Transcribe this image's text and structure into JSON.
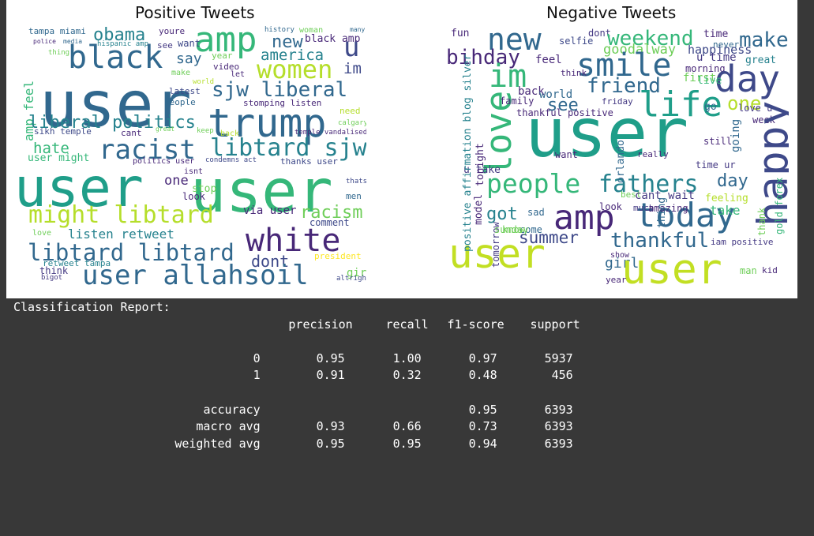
{
  "wordclouds": {
    "positive": {
      "title": "Positive Tweets",
      "words": [
        {
          "text": "tampa miami",
          "color": "#31688e"
        },
        {
          "text": "obama",
          "color": "#26828e"
        },
        {
          "text": "youre",
          "color": "#482878"
        },
        {
          "text": "amp",
          "color": "#35b779"
        },
        {
          "text": "history",
          "color": "#31688e"
        },
        {
          "text": "woman",
          "color": "#6ece58"
        },
        {
          "text": "many",
          "color": "#31688e"
        },
        {
          "text": "police",
          "color": "#482878"
        },
        {
          "text": "media",
          "color": "#31688e"
        },
        {
          "text": "hispanic amp",
          "color": "#26828e"
        },
        {
          "text": "see",
          "color": "#443983"
        },
        {
          "text": "want",
          "color": "#3e4989"
        },
        {
          "text": "new",
          "color": "#31688e"
        },
        {
          "text": "black amp",
          "color": "#482878"
        },
        {
          "text": "thing",
          "color": "#6ece58"
        },
        {
          "text": "black",
          "color": "#31688e"
        },
        {
          "text": "say",
          "color": "#31688e"
        },
        {
          "text": "year",
          "color": "#6ece58"
        },
        {
          "text": "america",
          "color": "#26828e"
        },
        {
          "text": "u",
          "color": "#3e4989"
        },
        {
          "text": "amp feel",
          "color": "#35b779"
        },
        {
          "text": "user",
          "color": "#31688e"
        },
        {
          "text": "video",
          "color": "#482878"
        },
        {
          "text": "women",
          "color": "#b5de2b"
        },
        {
          "text": "im",
          "color": "#3e4989"
        },
        {
          "text": "let",
          "color": "#482878"
        },
        {
          "text": "make",
          "color": "#6ece58"
        },
        {
          "text": "world",
          "color": "#b5de2b"
        },
        {
          "text": "sjw liberal",
          "color": "#31688e"
        },
        {
          "text": "latest",
          "color": "#3e4989"
        },
        {
          "text": "people",
          "color": "#31688e"
        },
        {
          "text": "stomping listen",
          "color": "#482878"
        },
        {
          "text": "trump",
          "color": "#31688e"
        },
        {
          "text": "liberal politics",
          "color": "#26828e"
        },
        {
          "text": "need",
          "color": "#b5de2b"
        },
        {
          "text": "sikh temple",
          "color": "#3e4989"
        },
        {
          "text": "cant",
          "color": "#482878"
        },
        {
          "text": "great",
          "color": "#6ece58"
        },
        {
          "text": "keep",
          "color": "#6ece58"
        },
        {
          "text": "back",
          "color": "#b5de2b"
        },
        {
          "text": "temple vandalised",
          "color": "#482878"
        },
        {
          "text": "calgary wso",
          "color": "#6ece58"
        },
        {
          "text": "hate",
          "color": "#35b779"
        },
        {
          "text": "racist",
          "color": "#31688e"
        },
        {
          "text": "libtard sjw",
          "color": "#26828e"
        },
        {
          "text": "user might",
          "color": "#35b779"
        },
        {
          "text": "politics user",
          "color": "#482878"
        },
        {
          "text": "condemns act",
          "color": "#3e4989"
        },
        {
          "text": "thanks user",
          "color": "#3e4989"
        },
        {
          "text": "user",
          "color": "#1f9e89"
        },
        {
          "text": "user",
          "color": "#35b779"
        },
        {
          "text": "one",
          "color": "#482878"
        },
        {
          "text": "isnt",
          "color": "#482878"
        },
        {
          "text": "stop",
          "color": "#6ece58"
        },
        {
          "text": "look",
          "color": "#482878"
        },
        {
          "text": "thats",
          "color": "#3e4989"
        },
        {
          "text": "men",
          "color": "#31688e"
        },
        {
          "text": "might libtard",
          "color": "#b5de2b"
        },
        {
          "text": "via user",
          "color": "#482878"
        },
        {
          "text": "racism",
          "color": "#6ece58"
        },
        {
          "text": "comment",
          "color": "#3e4989"
        },
        {
          "text": "listen retweet",
          "color": "#26828e"
        },
        {
          "text": "white",
          "color": "#482878"
        },
        {
          "text": "libtard libtard",
          "color": "#31688e"
        },
        {
          "text": "dont",
          "color": "#3e4989"
        },
        {
          "text": "president",
          "color": "#fde725"
        },
        {
          "text": "retweet tampa",
          "color": "#26828e"
        },
        {
          "text": "think",
          "color": "#443983"
        },
        {
          "text": "user allahsoil",
          "color": "#31688e"
        },
        {
          "text": "girl",
          "color": "#6ece58"
        },
        {
          "text": "bigot",
          "color": "#443983"
        },
        {
          "text": "altright",
          "color": "#3e4989"
        },
        {
          "text": "love",
          "color": "#6ece58"
        }
      ]
    },
    "negative": {
      "title": "Negative Tweets",
      "words": [
        {
          "text": "fun",
          "color": "#482878"
        },
        {
          "text": "new",
          "color": "#31688e"
        },
        {
          "text": "dont",
          "color": "#443983"
        },
        {
          "text": "weekend",
          "color": "#35b779"
        },
        {
          "text": "time",
          "color": "#482878"
        },
        {
          "text": "make",
          "color": "#31688e"
        },
        {
          "text": "selfie",
          "color": "#3e4989"
        },
        {
          "text": "happiness",
          "color": "#3e4989"
        },
        {
          "text": "never",
          "color": "#31688e"
        },
        {
          "text": "bihday",
          "color": "#482878"
        },
        {
          "text": "goodalway",
          "color": "#6ece58"
        },
        {
          "text": "u time",
          "color": "#443983"
        },
        {
          "text": "great",
          "color": "#26828e"
        },
        {
          "text": "feel",
          "color": "#482878"
        },
        {
          "text": "smile",
          "color": "#31688e"
        },
        {
          "text": "im",
          "color": "#35b779"
        },
        {
          "text": "morning",
          "color": "#482878"
        },
        {
          "text": "day",
          "color": "#3e4989"
        },
        {
          "text": "think",
          "color": "#482878"
        },
        {
          "text": "friend",
          "color": "#31688e"
        },
        {
          "text": "first",
          "color": "#6ece58"
        },
        {
          "text": "live",
          "color": "#35b779"
        },
        {
          "text": "love",
          "color": "#35b779"
        },
        {
          "text": "back",
          "color": "#482878"
        },
        {
          "text": "world",
          "color": "#31688e"
        },
        {
          "text": "life",
          "color": "#1f9e89"
        },
        {
          "text": "family",
          "color": "#482878"
        },
        {
          "text": "see",
          "color": "#31688e"
        },
        {
          "text": "friday",
          "color": "#443983"
        },
        {
          "text": "go",
          "color": "#31688e"
        },
        {
          "text": "one",
          "color": "#b5de2b"
        },
        {
          "text": "love u",
          "color": "#443983"
        },
        {
          "text": "thankful positive",
          "color": "#482878"
        },
        {
          "text": "week",
          "color": "#482878"
        },
        {
          "text": "user",
          "color": "#1f9e89"
        },
        {
          "text": "still",
          "color": "#482878"
        },
        {
          "text": "going",
          "color": "#31688e"
        },
        {
          "text": "happy",
          "color": "#3e4989"
        },
        {
          "text": "want",
          "color": "#482878"
        },
        {
          "text": "really",
          "color": "#482878"
        },
        {
          "text": "u take",
          "color": "#443983"
        },
        {
          "text": "time ur",
          "color": "#443983"
        },
        {
          "text": "people",
          "color": "#35b779"
        },
        {
          "text": "fathers",
          "color": "#26828e"
        },
        {
          "text": "day",
          "color": "#31688e"
        },
        {
          "text": "best",
          "color": "#6ece58"
        },
        {
          "text": "cant wait",
          "color": "#443983"
        },
        {
          "text": "feeling",
          "color": "#b5de2b"
        },
        {
          "text": "amp",
          "color": "#482878"
        },
        {
          "text": "today",
          "color": "#31688e"
        },
        {
          "text": "take",
          "color": "#35b779"
        },
        {
          "text": "got",
          "color": "#26828e"
        },
        {
          "text": "sad",
          "color": "#31688e"
        },
        {
          "text": "look",
          "color": "#482878"
        },
        {
          "text": "much",
          "color": "#443983"
        },
        {
          "text": "amazing",
          "color": "#482878"
        },
        {
          "text": "thank",
          "color": "#6ece58"
        },
        {
          "text": "know",
          "color": "#6ece58"
        },
        {
          "text": "come",
          "color": "#31688e"
        },
        {
          "text": "summer",
          "color": "#3e4989"
        },
        {
          "text": "thankful",
          "color": "#31688e"
        },
        {
          "text": "iam positive",
          "color": "#443983"
        },
        {
          "text": "user",
          "color": "#c2df23"
        },
        {
          "text": "girl",
          "color": "#31688e"
        },
        {
          "text": "show",
          "color": "#482878"
        },
        {
          "text": "user",
          "color": "#c2df23"
        },
        {
          "text": "year",
          "color": "#482878"
        },
        {
          "text": "man",
          "color": "#6ece58"
        },
        {
          "text": "kid",
          "color": "#482878"
        },
        {
          "text": "positive affirmation blog silver",
          "color": "#26828e"
        },
        {
          "text": "tonight",
          "color": "#482878"
        },
        {
          "text": "model",
          "color": "#482878"
        },
        {
          "text": "tomorrow",
          "color": "#443983"
        },
        {
          "text": "sunday",
          "color": "#6ece58"
        },
        {
          "text": "orlando",
          "color": "#31688e"
        },
        {
          "text": "thing",
          "color": "#31688e"
        },
        {
          "text": "gold forex",
          "color": "#35b779"
        }
      ]
    }
  },
  "report": {
    "title": "Classification Report:",
    "headers": [
      "precision",
      "recall",
      "f1-score",
      "support"
    ],
    "rows": [
      {
        "label": "0",
        "precision": "0.95",
        "recall": "1.00",
        "f1": "0.97",
        "support": "5937"
      },
      {
        "label": "1",
        "precision": "0.91",
        "recall": "0.32",
        "f1": "0.48",
        "support": "456"
      }
    ],
    "accuracy": {
      "label": "accuracy",
      "f1": "0.95",
      "support": "6393"
    },
    "averages": [
      {
        "label": "macro avg",
        "precision": "0.93",
        "recall": "0.66",
        "f1": "0.73",
        "support": "6393"
      },
      {
        "label": "weighted avg",
        "precision": "0.95",
        "recall": "0.95",
        "f1": "0.94",
        "support": "6393"
      }
    ]
  }
}
